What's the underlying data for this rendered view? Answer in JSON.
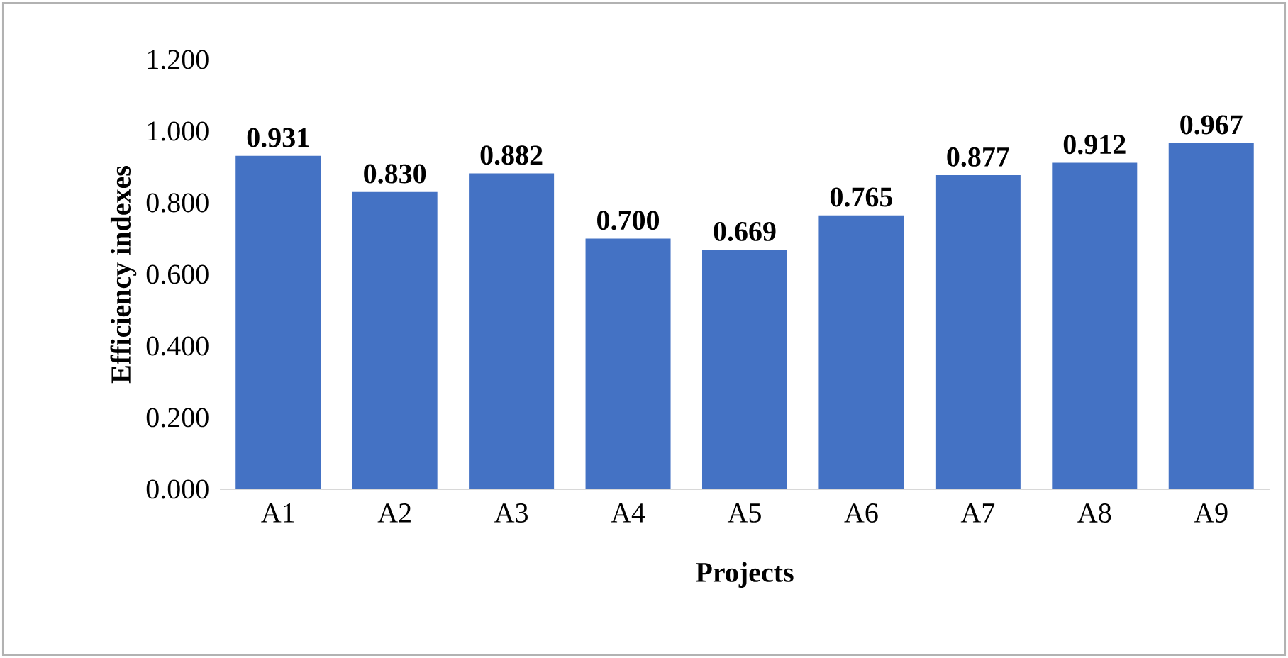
{
  "chart_data": {
    "type": "bar",
    "xlabel": "Projects",
    "ylabel": "Efficiency indexes",
    "categories": [
      "A1",
      "A2",
      "A3",
      "A4",
      "A5",
      "A6",
      "A7",
      "A8",
      "A9"
    ],
    "values": [
      0.931,
      0.83,
      0.882,
      0.7,
      0.669,
      0.765,
      0.877,
      0.912,
      0.967
    ],
    "color": "#4472c4",
    "ylim": [
      0,
      1.2
    ],
    "yticks": [
      {
        "value": 0,
        "label": "0.000"
      },
      {
        "value": 0.2,
        "label": "0.200"
      },
      {
        "value": 0.4,
        "label": "0.400"
      },
      {
        "value": 0.6,
        "label": "0.600"
      },
      {
        "value": 0.8,
        "label": "0.800"
      },
      {
        "value": 1.0,
        "label": "1.000"
      },
      {
        "value": 1.2,
        "label": "1.200"
      }
    ],
    "value_labels": [
      "0.931",
      "0.830",
      "0.882",
      "0.700",
      "0.669",
      "0.765",
      "0.877",
      "0.912",
      "0.967"
    ]
  }
}
